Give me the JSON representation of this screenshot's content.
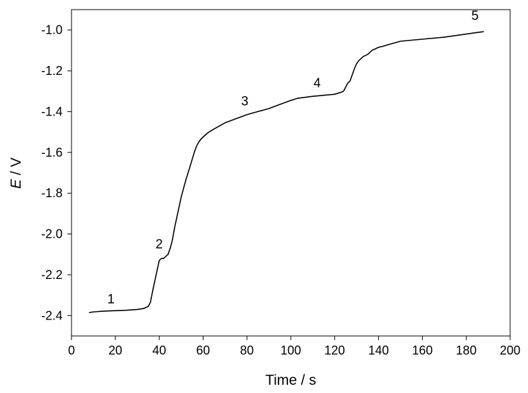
{
  "chart_data": {
    "type": "line",
    "title": "",
    "xlabel": "Time / s",
    "ylabel": {
      "italic": "E",
      "rest": " / V"
    },
    "xlim": [
      0,
      200
    ],
    "ylim": [
      -2.5,
      -0.9
    ],
    "xticks": [
      0,
      20,
      40,
      60,
      80,
      100,
      120,
      140,
      160,
      180,
      200
    ],
    "xtick_labels": [
      "0",
      "20",
      "40",
      "60",
      "80",
      "100",
      "120",
      "140",
      "160",
      "180",
      "200"
    ],
    "yticks": [
      -2.4,
      -2.2,
      -2.0,
      -1.8,
      -1.6,
      -1.4,
      -1.2,
      -1.0
    ],
    "ytick_labels": [
      "-2.4",
      "-2.2",
      "-2.0",
      "-1.8",
      "-1.6",
      "-1.4",
      "-1.2",
      "-1.0"
    ],
    "grid": false,
    "legend": "none",
    "line_color": "#000000",
    "series": [
      {
        "x": [
          8,
          10,
          15,
          20,
          25,
          30,
          33,
          35,
          36,
          37,
          38,
          39,
          40,
          41,
          42,
          43,
          44,
          45,
          46,
          47,
          48,
          50,
          52,
          54,
          56,
          57,
          58,
          59,
          60,
          62,
          65,
          70,
          75,
          80,
          85,
          90,
          95,
          100,
          103,
          110,
          115,
          120,
          123,
          124,
          125,
          126,
          127,
          128,
          129,
          130,
          131,
          132,
          133,
          134,
          135,
          137,
          140,
          142,
          145,
          150,
          160,
          170,
          180,
          185,
          188
        ],
        "y": [
          -2.385,
          -2.382,
          -2.378,
          -2.376,
          -2.374,
          -2.37,
          -2.365,
          -2.355,
          -2.335,
          -2.28,
          -2.23,
          -2.18,
          -2.13,
          -2.12,
          -2.12,
          -2.11,
          -2.1,
          -2.07,
          -2.03,
          -1.97,
          -1.92,
          -1.82,
          -1.74,
          -1.67,
          -1.6,
          -1.57,
          -1.55,
          -1.535,
          -1.525,
          -1.505,
          -1.485,
          -1.455,
          -1.435,
          -1.415,
          -1.4,
          -1.385,
          -1.365,
          -1.345,
          -1.335,
          -1.325,
          -1.32,
          -1.315,
          -1.305,
          -1.3,
          -1.28,
          -1.26,
          -1.25,
          -1.22,
          -1.19,
          -1.165,
          -1.15,
          -1.14,
          -1.13,
          -1.125,
          -1.12,
          -1.1,
          -1.085,
          -1.08,
          -1.07,
          -1.055,
          -1.045,
          -1.035,
          -1.02,
          -1.012,
          -1.008
        ]
      }
    ],
    "annotations": [
      {
        "text": "1",
        "x": 18,
        "y": -2.34
      },
      {
        "text": "2",
        "x": 40,
        "y": -2.07
      },
      {
        "text": "3",
        "x": 79,
        "y": -1.37
      },
      {
        "text": "4",
        "x": 112,
        "y": -1.28
      },
      {
        "text": "5",
        "x": 184,
        "y": -0.95
      }
    ]
  }
}
